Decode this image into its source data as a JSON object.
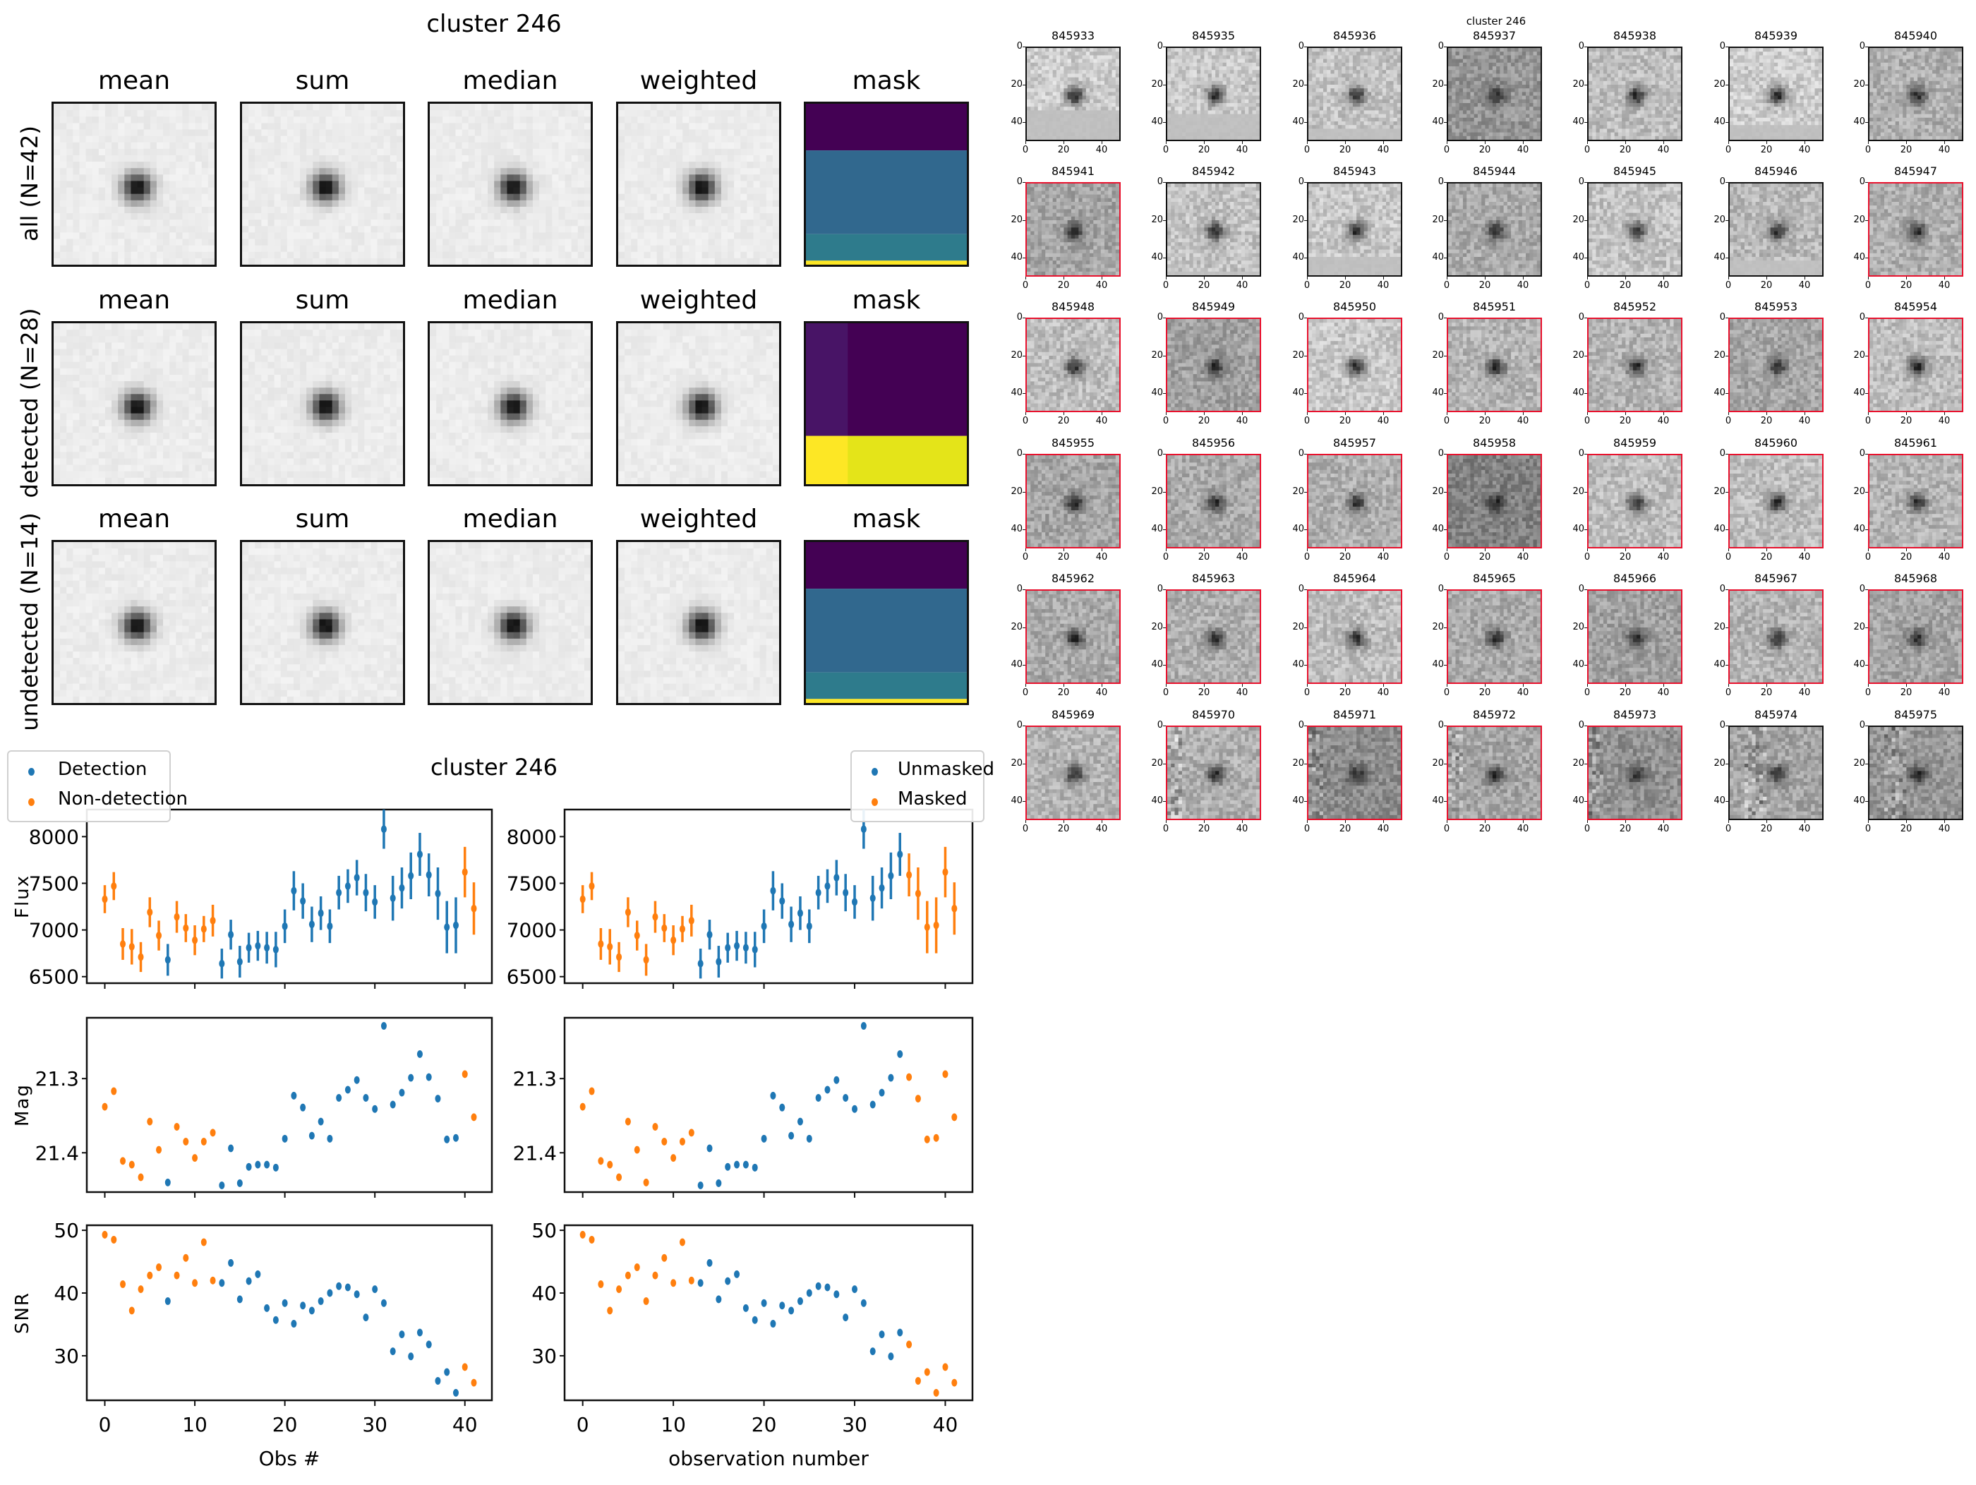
{
  "stacks": {
    "title": "cluster 246",
    "columns": [
      "mean",
      "sum",
      "median",
      "weighted",
      "mask"
    ],
    "rows": [
      {
        "label": "all (N=42)",
        "mask_colors": [
          "#440154",
          "#31688e",
          "#2e7b8c",
          "#fde725"
        ]
      },
      {
        "label": "detected (N=28)",
        "mask_colors": [
          "#440154",
          "#fde725"
        ]
      },
      {
        "label": "undetected (N=14)",
        "mask_colors": [
          "#440154",
          "#31688e",
          "#2e7b8c",
          "#fde725"
        ]
      }
    ]
  },
  "lightcurves": {
    "title": "cluster 246",
    "legend_left": [
      "Detection",
      "Non-detection"
    ],
    "legend_right": [
      "Unmasked",
      "Masked"
    ],
    "ylabels": [
      "Flux",
      "Mag",
      "SNR"
    ],
    "xlabel_left": "Obs #",
    "xlabel_right": "observation number",
    "colors": {
      "blue": "#1f77b4",
      "orange": "#ff7f0e"
    }
  },
  "chart_data": [
    {
      "type": "scatter",
      "title": "cluster 246",
      "xlabel": "Obs #",
      "ylabel": "Flux",
      "xlim": [
        -2,
        43
      ],
      "ylim": [
        6430,
        8290
      ],
      "xticks": [
        0,
        10,
        20,
        30,
        40
      ],
      "yticks": [
        6500,
        7000,
        7500,
        8000
      ],
      "ytick_labels": [
        "6500",
        "7000",
        "7500",
        "8000"
      ],
      "x": [
        0,
        1,
        2,
        3,
        4,
        5,
        6,
        7,
        8,
        9,
        10,
        11,
        12,
        13,
        14,
        15,
        16,
        17,
        18,
        19,
        20,
        21,
        22,
        23,
        24,
        25,
        26,
        27,
        28,
        29,
        30,
        31,
        32,
        33,
        34,
        35,
        36,
        37,
        38,
        39,
        40,
        41
      ],
      "y": [
        7330,
        7470,
        6850,
        6820,
        6710,
        7190,
        6940,
        6680,
        7140,
        7020,
        6890,
        7010,
        7100,
        6640,
        6950,
        6660,
        6810,
        6830,
        6810,
        6790,
        7040,
        7420,
        7310,
        7060,
        7180,
        7040,
        7400,
        7470,
        7560,
        7400,
        7300,
        8080,
        7340,
        7450,
        7580,
        7810,
        7590,
        7390,
        7030,
        7050,
        7620,
        7230
      ],
      "yerr": [
        150,
        150,
        170,
        190,
        160,
        160,
        160,
        170,
        170,
        150,
        160,
        140,
        170,
        160,
        160,
        170,
        160,
        160,
        170,
        190,
        180,
        210,
        190,
        190,
        180,
        180,
        180,
        180,
        190,
        200,
        180,
        210,
        240,
        220,
        250,
        230,
        230,
        280,
        280,
        300,
        270,
        280
      ],
      "series_by_point": [
        "Non-detection",
        "Non-detection",
        "Non-detection",
        "Non-detection",
        "Non-detection",
        "Non-detection",
        "Non-detection",
        "Detection",
        "Non-detection",
        "Non-detection",
        "Non-detection",
        "Non-detection",
        "Non-detection",
        "Detection",
        "Detection",
        "Detection",
        "Detection",
        "Detection",
        "Detection",
        "Detection",
        "Detection",
        "Detection",
        "Detection",
        "Detection",
        "Detection",
        "Detection",
        "Detection",
        "Detection",
        "Detection",
        "Detection",
        "Detection",
        "Detection",
        "Detection",
        "Detection",
        "Detection",
        "Detection",
        "Detection",
        "Detection",
        "Detection",
        "Detection",
        "Non-detection",
        "Non-detection"
      ],
      "legend": [
        "Detection",
        "Non-detection"
      ],
      "legend_position": "upper-left"
    },
    {
      "type": "scatter",
      "xlabel": "observation number",
      "ylabel": "",
      "xlim": [
        -2,
        43
      ],
      "ylim": [
        6430,
        8290
      ],
      "xticks": [
        0,
        10,
        20,
        30,
        40
      ],
      "yticks": [
        6500,
        7000,
        7500,
        8000
      ],
      "ytick_labels": [
        "6500",
        "7000",
        "7500",
        "8000"
      ],
      "x": [
        0,
        1,
        2,
        3,
        4,
        5,
        6,
        7,
        8,
        9,
        10,
        11,
        12,
        13,
        14,
        15,
        16,
        17,
        18,
        19,
        20,
        21,
        22,
        23,
        24,
        25,
        26,
        27,
        28,
        29,
        30,
        31,
        32,
        33,
        34,
        35,
        36,
        37,
        38,
        39,
        40,
        41
      ],
      "y": [
        7330,
        7470,
        6850,
        6820,
        6710,
        7190,
        6940,
        6680,
        7140,
        7020,
        6890,
        7010,
        7100,
        6640,
        6950,
        6660,
        6810,
        6830,
        6810,
        6790,
        7040,
        7420,
        7310,
        7060,
        7180,
        7040,
        7400,
        7470,
        7560,
        7400,
        7300,
        8080,
        7340,
        7450,
        7580,
        7810,
        7590,
        7390,
        7030,
        7050,
        7620,
        7230
      ],
      "yerr": [
        150,
        150,
        170,
        190,
        160,
        160,
        160,
        170,
        170,
        150,
        160,
        140,
        170,
        160,
        160,
        170,
        160,
        160,
        170,
        190,
        180,
        210,
        190,
        190,
        180,
        180,
        180,
        180,
        190,
        200,
        180,
        210,
        240,
        220,
        250,
        230,
        230,
        280,
        280,
        300,
        270,
        280
      ],
      "series_by_point": [
        "Masked",
        "Masked",
        "Masked",
        "Masked",
        "Masked",
        "Masked",
        "Masked",
        "Masked",
        "Masked",
        "Masked",
        "Masked",
        "Masked",
        "Masked",
        "Unmasked",
        "Unmasked",
        "Unmasked",
        "Unmasked",
        "Unmasked",
        "Unmasked",
        "Unmasked",
        "Unmasked",
        "Unmasked",
        "Unmasked",
        "Unmasked",
        "Unmasked",
        "Unmasked",
        "Unmasked",
        "Unmasked",
        "Unmasked",
        "Unmasked",
        "Unmasked",
        "Unmasked",
        "Unmasked",
        "Unmasked",
        "Unmasked",
        "Unmasked",
        "Masked",
        "Masked",
        "Masked",
        "Masked",
        "Masked",
        "Masked"
      ],
      "legend": [
        "Unmasked",
        "Masked"
      ],
      "legend_position": "upper-right"
    },
    {
      "type": "scatter",
      "ylabel": "Mag",
      "xlim": [
        -2,
        43
      ],
      "ylim": [
        21.453,
        21.218
      ],
      "inverted_y": true,
      "xticks": [
        0,
        10,
        20,
        30,
        40
      ],
      "yticks": [
        21.3,
        21.4
      ],
      "ytick_labels": [
        "21.3",
        "21.4"
      ],
      "x": [
        0,
        1,
        2,
        3,
        4,
        5,
        6,
        7,
        8,
        9,
        10,
        11,
        12,
        13,
        14,
        15,
        16,
        17,
        18,
        19,
        20,
        21,
        22,
        23,
        24,
        25,
        26,
        27,
        28,
        29,
        30,
        31,
        32,
        33,
        34,
        35,
        36,
        37,
        38,
        39,
        40,
        41
      ],
      "y": [
        21.338,
        21.317,
        21.411,
        21.416,
        21.433,
        21.358,
        21.396,
        21.44,
        21.365,
        21.385,
        21.407,
        21.385,
        21.373,
        21.444,
        21.394,
        21.441,
        21.419,
        21.416,
        21.416,
        21.42,
        21.381,
        21.323,
        21.339,
        21.377,
        21.358,
        21.381,
        21.326,
        21.315,
        21.302,
        21.326,
        21.341,
        21.229,
        21.335,
        21.319,
        21.299,
        21.267,
        21.298,
        21.327,
        21.382,
        21.38,
        21.294,
        21.352
      ],
      "series_ref": "left"
    },
    {
      "type": "scatter",
      "ylabel": "",
      "xlim": [
        -2,
        43
      ],
      "ylim": [
        21.453,
        21.218
      ],
      "inverted_y": true,
      "xticks": [
        0,
        10,
        20,
        30,
        40
      ],
      "yticks": [
        21.3,
        21.4
      ],
      "ytick_labels": [
        "21.3",
        "21.4"
      ],
      "x": [
        0,
        1,
        2,
        3,
        4,
        5,
        6,
        7,
        8,
        9,
        10,
        11,
        12,
        13,
        14,
        15,
        16,
        17,
        18,
        19,
        20,
        21,
        22,
        23,
        24,
        25,
        26,
        27,
        28,
        29,
        30,
        31,
        32,
        33,
        34,
        35,
        36,
        37,
        38,
        39,
        40,
        41
      ],
      "y": [
        21.338,
        21.317,
        21.411,
        21.416,
        21.433,
        21.358,
        21.396,
        21.44,
        21.365,
        21.385,
        21.407,
        21.385,
        21.373,
        21.444,
        21.394,
        21.441,
        21.419,
        21.416,
        21.416,
        21.42,
        21.381,
        21.323,
        21.339,
        21.377,
        21.358,
        21.381,
        21.326,
        21.315,
        21.302,
        21.326,
        21.341,
        21.229,
        21.335,
        21.319,
        21.299,
        21.267,
        21.298,
        21.327,
        21.382,
        21.38,
        21.294,
        21.352
      ],
      "series_ref": "right"
    },
    {
      "type": "scatter",
      "ylabel": "SNR",
      "xlabel": "Obs #",
      "xlim": [
        -2,
        43
      ],
      "ylim": [
        22.9,
        50.8
      ],
      "xticks": [
        0,
        10,
        20,
        30,
        40
      ],
      "xtick_labels": [
        "0",
        "10",
        "20",
        "30",
        "40"
      ],
      "yticks": [
        30,
        40,
        50
      ],
      "ytick_labels": [
        "30",
        "40",
        "50"
      ],
      "x": [
        0,
        1,
        2,
        3,
        4,
        5,
        6,
        7,
        8,
        9,
        10,
        11,
        12,
        13,
        14,
        15,
        16,
        17,
        18,
        19,
        20,
        21,
        22,
        23,
        24,
        25,
        26,
        27,
        28,
        29,
        30,
        31,
        32,
        33,
        34,
        35,
        36,
        37,
        38,
        39,
        40,
        41
      ],
      "y": [
        49.3,
        48.5,
        41.4,
        37.2,
        40.6,
        42.8,
        44.1,
        38.7,
        42.8,
        45.6,
        41.6,
        48.1,
        42.0,
        41.6,
        44.8,
        39.0,
        41.9,
        43.0,
        37.6,
        35.7,
        38.4,
        35.1,
        38.0,
        37.2,
        38.7,
        40.0,
        41.1,
        40.9,
        39.8,
        36.1,
        40.6,
        38.4,
        30.7,
        33.4,
        29.9,
        33.7,
        31.8,
        26.0,
        27.4,
        24.1,
        28.2,
        25.7
      ],
      "series_ref": "left"
    },
    {
      "type": "scatter",
      "ylabel": "",
      "xlabel": "observation number",
      "xlim": [
        -2,
        43
      ],
      "ylim": [
        22.9,
        50.8
      ],
      "xticks": [
        0,
        10,
        20,
        30,
        40
      ],
      "xtick_labels": [
        "0",
        "10",
        "20",
        "30",
        "40"
      ],
      "yticks": [
        30,
        40,
        50
      ],
      "ytick_labels": [
        "30",
        "40",
        "50"
      ],
      "x": [
        0,
        1,
        2,
        3,
        4,
        5,
        6,
        7,
        8,
        9,
        10,
        11,
        12,
        13,
        14,
        15,
        16,
        17,
        18,
        19,
        20,
        21,
        22,
        23,
        24,
        25,
        26,
        27,
        28,
        29,
        30,
        31,
        32,
        33,
        34,
        35,
        36,
        37,
        38,
        39,
        40,
        41
      ],
      "y": [
        49.3,
        48.5,
        41.4,
        37.2,
        40.6,
        42.8,
        44.1,
        38.7,
        42.8,
        45.6,
        41.6,
        48.1,
        42.0,
        41.6,
        44.8,
        39.0,
        41.9,
        43.0,
        37.6,
        35.7,
        38.4,
        35.1,
        38.0,
        37.2,
        38.7,
        40.0,
        41.1,
        40.9,
        39.8,
        36.1,
        40.6,
        38.4,
        30.7,
        33.4,
        29.9,
        33.7,
        31.8,
        26.0,
        27.4,
        24.1,
        28.2,
        25.7
      ],
      "series_ref": "right"
    }
  ],
  "stamps": {
    "title": "cluster 246",
    "axis_ticks": [
      "0",
      "20",
      "40"
    ],
    "frame_colors": {
      "detected": "#e8112d",
      "undetected": "#111111"
    },
    "items": [
      {
        "id": "845933",
        "detected": false
      },
      {
        "id": "845935",
        "detected": false
      },
      {
        "id": "845936",
        "detected": false
      },
      {
        "id": "845937",
        "detected": false
      },
      {
        "id": "845938",
        "detected": false
      },
      {
        "id": "845939",
        "detected": false
      },
      {
        "id": "845940",
        "detected": false
      },
      {
        "id": "845941",
        "detected": true
      },
      {
        "id": "845942",
        "detected": false
      },
      {
        "id": "845943",
        "detected": false
      },
      {
        "id": "845944",
        "detected": false
      },
      {
        "id": "845945",
        "detected": false
      },
      {
        "id": "845946",
        "detected": false
      },
      {
        "id": "845947",
        "detected": true
      },
      {
        "id": "845948",
        "detected": true
      },
      {
        "id": "845949",
        "detected": true
      },
      {
        "id": "845950",
        "detected": true
      },
      {
        "id": "845951",
        "detected": true
      },
      {
        "id": "845952",
        "detected": true
      },
      {
        "id": "845953",
        "detected": true
      },
      {
        "id": "845954",
        "detected": true
      },
      {
        "id": "845955",
        "detected": true
      },
      {
        "id": "845956",
        "detected": true
      },
      {
        "id": "845957",
        "detected": true
      },
      {
        "id": "845958",
        "detected": true
      },
      {
        "id": "845959",
        "detected": true
      },
      {
        "id": "845960",
        "detected": true
      },
      {
        "id": "845961",
        "detected": true
      },
      {
        "id": "845962",
        "detected": true
      },
      {
        "id": "845963",
        "detected": true
      },
      {
        "id": "845964",
        "detected": true
      },
      {
        "id": "845965",
        "detected": true
      },
      {
        "id": "845966",
        "detected": true
      },
      {
        "id": "845967",
        "detected": true
      },
      {
        "id": "845968",
        "detected": true
      },
      {
        "id": "845969",
        "detected": true
      },
      {
        "id": "845970",
        "detected": true
      },
      {
        "id": "845971",
        "detected": true
      },
      {
        "id": "845972",
        "detected": true
      },
      {
        "id": "845973",
        "detected": true
      },
      {
        "id": "845974",
        "detected": false
      },
      {
        "id": "845975",
        "detected": false
      }
    ]
  }
}
